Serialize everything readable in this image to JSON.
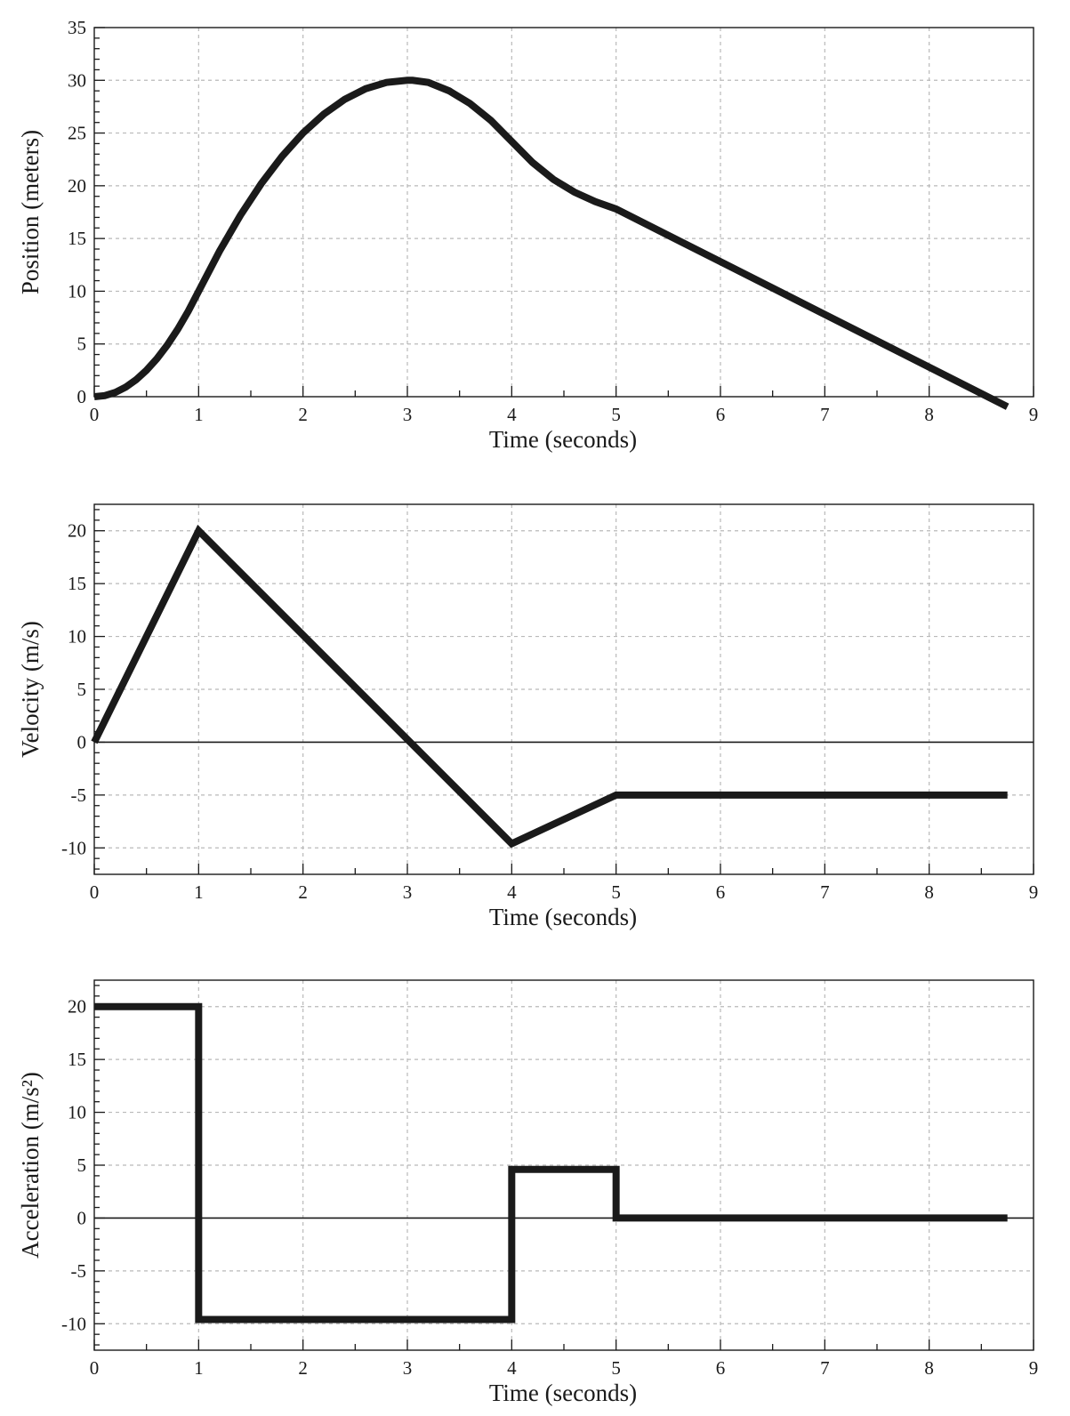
{
  "chart_data": [
    {
      "type": "line",
      "title": "",
      "xlabel": "Time (seconds)",
      "ylabel": "Position (meters)",
      "xlim": [
        0,
        9
      ],
      "ylim": [
        0,
        35
      ],
      "x_ticks": [
        0,
        1,
        2,
        3,
        4,
        5,
        6,
        7,
        8,
        9
      ],
      "y_ticks": [
        0,
        5,
        10,
        15,
        20,
        25,
        30,
        35
      ],
      "x_tick_labels": [
        "0",
        "1",
        "2",
        "3",
        "4",
        "5",
        "6",
        "7",
        "8",
        "9"
      ],
      "y_tick_labels": [
        "0",
        "5",
        "10",
        "15",
        "20",
        "25",
        "30",
        "35"
      ],
      "grid": true,
      "zero_line": false,
      "color": "#1a1a1a",
      "series": [
        {
          "x": [
            0,
            0.1,
            0.2,
            0.3,
            0.4,
            0.5,
            0.6,
            0.7,
            0.8,
            0.9,
            1.0,
            1.2,
            1.4,
            1.6,
            1.8,
            2.0,
            2.2,
            2.4,
            2.6,
            2.8,
            3.0,
            3.05,
            3.2,
            3.4,
            3.6,
            3.8,
            4.0,
            4.2,
            4.4,
            4.6,
            4.8,
            5.0,
            6.0,
            7.0,
            8.0,
            8.75
          ],
          "y": [
            0,
            0.1,
            0.4,
            0.9,
            1.6,
            2.5,
            3.6,
            4.9,
            6.4,
            8.1,
            10.0,
            13.8,
            17.2,
            20.2,
            22.8,
            25.0,
            26.8,
            28.2,
            29.2,
            29.8,
            30.0,
            30.0,
            29.8,
            29.0,
            27.8,
            26.2,
            24.2,
            22.2,
            20.6,
            19.4,
            18.5,
            17.8,
            12.8,
            7.8,
            2.8,
            -0.95
          ]
        }
      ]
    },
    {
      "type": "line",
      "title": "",
      "xlabel": "Time (seconds)",
      "ylabel": "Velocity (m/s)",
      "xlim": [
        0,
        9
      ],
      "ylim": [
        -12.5,
        22.5
      ],
      "x_ticks": [
        0,
        1,
        2,
        3,
        4,
        5,
        6,
        7,
        8,
        9
      ],
      "y_ticks": [
        -10,
        -5,
        0,
        5,
        10,
        15,
        20
      ],
      "x_tick_labels": [
        "0",
        "1",
        "2",
        "3",
        "4",
        "5",
        "6",
        "7",
        "8",
        "9"
      ],
      "y_tick_labels": [
        "-10",
        "-5",
        "0",
        "5",
        "10",
        "15",
        "20"
      ],
      "grid": true,
      "zero_line": true,
      "color": "#1a1a1a",
      "series": [
        {
          "x": [
            0,
            1,
            4,
            5,
            8.75
          ],
          "y": [
            0,
            20,
            -9.6,
            -5,
            -5
          ]
        }
      ]
    },
    {
      "type": "line",
      "title": "",
      "xlabel": "Time (seconds)",
      "ylabel": "Acceleration (m/s²)",
      "xlim": [
        0,
        9
      ],
      "ylim": [
        -12.5,
        22.5
      ],
      "x_ticks": [
        0,
        1,
        2,
        3,
        4,
        5,
        6,
        7,
        8,
        9
      ],
      "y_ticks": [
        -10,
        -5,
        0,
        5,
        10,
        15,
        20
      ],
      "x_tick_labels": [
        "0",
        "1",
        "2",
        "3",
        "4",
        "5",
        "6",
        "7",
        "8",
        "9"
      ],
      "y_tick_labels": [
        "-10",
        "-5",
        "0",
        "5",
        "10",
        "15",
        "20"
      ],
      "grid": true,
      "zero_line": true,
      "color": "#1a1a1a",
      "series": [
        {
          "x": [
            0,
            1,
            1,
            4,
            4,
            5,
            5,
            8.75
          ],
          "y": [
            20,
            20,
            -9.6,
            -9.6,
            4.6,
            4.6,
            0,
            0
          ]
        }
      ]
    }
  ]
}
